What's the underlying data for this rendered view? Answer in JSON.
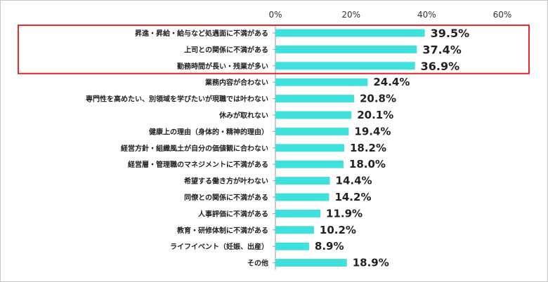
{
  "chart_data": {
    "type": "bar",
    "orientation": "horizontal",
    "categories": [
      "昇進・昇給・給与など処遇面に不満がある",
      "上司との関係に不満がある",
      "勤務時間が長い・残業が多い",
      "業務内容が合わない",
      "専門性を高めたい、別領域を学びたいが現職では叶わない",
      "休みが取れない",
      "健康上の理由（身体的・精神的理由）",
      "経営方針・組織風土が自分の価値観に合わない",
      "経営層・管理職のマネジメントに不満がある",
      "希望する働き方が叶わない",
      "同僚との関係に不満がある",
      "人事評価に不満がある",
      "教育・研修体制に不満がある",
      "ライフイベント（妊娠、出産）",
      "その他"
    ],
    "values": [
      39.5,
      37.4,
      36.9,
      24.4,
      20.8,
      20.1,
      19.4,
      18.2,
      18.0,
      14.4,
      14.2,
      11.9,
      10.2,
      8.9,
      18.9
    ],
    "value_labels": [
      "39.5%",
      "37.4%",
      "36.9%",
      "24.4%",
      "20.8%",
      "20.1%",
      "19.4%",
      "18.2%",
      "18.0%",
      "14.4%",
      "14.2%",
      "11.9%",
      "10.2%",
      "8.9%",
      "18.9%"
    ],
    "xlim": [
      0,
      60
    ],
    "xticks": [
      0,
      20,
      40,
      60
    ],
    "xtick_labels": [
      "0%",
      "20%",
      "40%",
      "60%"
    ],
    "highlighted": [
      0,
      1,
      2
    ],
    "grid": false,
    "legend": "none",
    "colors": {
      "bar": "#40e0dc",
      "highlight_box": "#e8282d",
      "text": "#222222",
      "axis": "#999999"
    }
  }
}
